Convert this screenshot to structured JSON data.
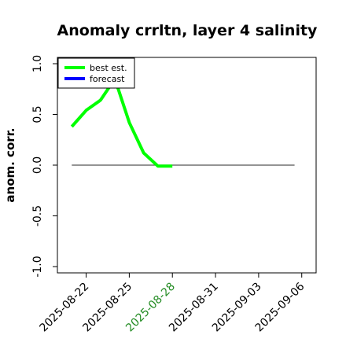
{
  "chart_data": {
    "type": "line",
    "title": "Anomaly crrltn, layer 4 salinity",
    "ylabel": "anom. corr.",
    "xlabel": "",
    "ylim": [
      -1.0,
      1.0
    ],
    "xlim": [
      "2025-08-20",
      "2025-09-07"
    ],
    "yticks": [
      "-1.0",
      "-0.5",
      "0.0",
      "0.5",
      "1.0"
    ],
    "ytick_values": [
      -1.0,
      -0.5,
      0.0,
      0.5,
      1.0
    ],
    "xticks": [
      "2025-08-22",
      "2025-08-25",
      "2025-08-28",
      "2025-08-31",
      "2025-09-03",
      "2025-09-06"
    ],
    "xtick_colors": [
      "#000000",
      "#000000",
      "#228b22",
      "#000000",
      "#000000",
      "#000000"
    ],
    "reference_line": {
      "y": 0.0,
      "from": "2025-08-21",
      "to": "2025-09-05T12:00",
      "color": "#555555"
    },
    "series": [
      {
        "name": "best est.",
        "color": "#00ff00",
        "x": [
          "2025-08-21",
          "2025-08-22",
          "2025-08-23",
          "2025-08-24",
          "2025-08-25",
          "2025-08-26",
          "2025-08-27",
          "2025-08-28"
        ],
        "values": [
          0.38,
          0.54,
          0.64,
          0.85,
          0.42,
          0.12,
          -0.01,
          -0.01
        ]
      },
      {
        "name": "forecast",
        "color": "#0000ff",
        "x": [],
        "values": []
      }
    ],
    "legend": "top-left",
    "grid": false
  }
}
